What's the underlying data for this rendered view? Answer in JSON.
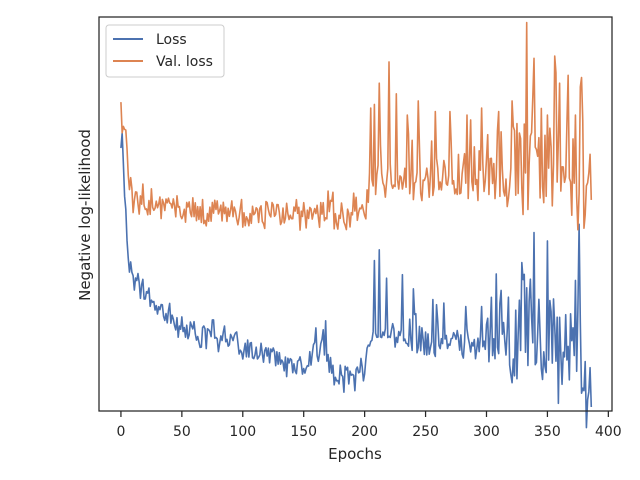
{
  "chart_data": {
    "type": "line",
    "title": "",
    "xlabel": "Epochs",
    "ylabel": "Negative log-likelihood",
    "xlim": [
      -18,
      403
    ],
    "ylim": [
      0,
      1
    ],
    "xticks": [
      0,
      50,
      100,
      150,
      200,
      250,
      300,
      350,
      400
    ],
    "yticks_labeled": false,
    "grid": false,
    "legend": {
      "position": "top-left"
    },
    "series": [
      {
        "name": "Loss",
        "color": "#4c72b0",
        "noise_amp": [
          0.05,
          0.04,
          0.05,
          0.06,
          0.05,
          0.045,
          0.045,
          0.045,
          0.06,
          0.05,
          0.04,
          0.05,
          0.06,
          0.04,
          0.05,
          0.08,
          0.17,
          0.17,
          0.17,
          0.17
        ],
        "points": [
          [
            0,
            0.72
          ],
          [
            1,
            0.71
          ],
          [
            2,
            0.62
          ],
          [
            3,
            0.55
          ],
          [
            4,
            0.51
          ],
          [
            5,
            0.4
          ],
          [
            6,
            0.38
          ],
          [
            8,
            0.36
          ],
          [
            10,
            0.34
          ],
          [
            15,
            0.3
          ],
          [
            20,
            0.28
          ],
          [
            30,
            0.24
          ],
          [
            40,
            0.22
          ],
          [
            50,
            0.19
          ],
          [
            60,
            0.18
          ],
          [
            70,
            0.17
          ],
          [
            80,
            0.16
          ],
          [
            90,
            0.15
          ],
          [
            100,
            0.14
          ],
          [
            110,
            0.13
          ],
          [
            120,
            0.12
          ],
          [
            130,
            0.1
          ],
          [
            140,
            0.09
          ],
          [
            150,
            0.08
          ],
          [
            158,
            0.11
          ],
          [
            165,
            0.14
          ],
          [
            168,
            0.16
          ],
          [
            172,
            0.08
          ],
          [
            180,
            0.05
          ],
          [
            190,
            0.05
          ],
          [
            198,
            0.06
          ],
          [
            203,
            0.12
          ],
          [
            206,
            0.16
          ],
          [
            220,
            0.16
          ],
          [
            250,
            0.15
          ],
          [
            300,
            0.14
          ],
          [
            350,
            0.13
          ],
          [
            378,
            0.12
          ],
          [
            382,
            0.06
          ],
          [
            384,
            0.04
          ],
          [
            386,
            0.05
          ]
        ],
        "spikes": [
          [
            160,
            0.19
          ],
          [
            168,
            0.21
          ],
          [
            208,
            0.38
          ],
          [
            212,
            0.41
          ],
          [
            218,
            0.33
          ],
          [
            231,
            0.34
          ],
          [
            240,
            0.3
          ],
          [
            256,
            0.27
          ],
          [
            265,
            0.26
          ],
          [
            283,
            0.25
          ],
          [
            296,
            0.25
          ],
          [
            324,
            0.24
          ],
          [
            337,
            0.22
          ],
          [
            358,
            0.22
          ],
          [
            375,
            0.24
          ]
        ]
      },
      {
        "name": "Val. loss",
        "color": "#dd8452",
        "noise_amp": [
          0.06,
          0.05,
          0.05,
          0.06,
          0.06,
          0.06,
          0.05,
          0.05,
          0.06,
          0.06,
          0.06,
          0.06,
          0.07,
          0.07,
          0.09,
          0.1,
          0.18,
          0.17,
          0.17,
          0.17
        ],
        "points": [
          [
            0,
            0.8
          ],
          [
            2,
            0.78
          ],
          [
            4,
            0.72
          ],
          [
            6,
            0.62
          ],
          [
            10,
            0.56
          ],
          [
            20,
            0.54
          ],
          [
            40,
            0.52
          ],
          [
            60,
            0.52
          ],
          [
            80,
            0.52
          ],
          [
            100,
            0.52
          ],
          [
            110,
            0.51
          ],
          [
            120,
            0.51
          ],
          [
            130,
            0.51
          ],
          [
            140,
            0.51
          ],
          [
            150,
            0.5
          ],
          [
            160,
            0.52
          ],
          [
            170,
            0.53
          ],
          [
            180,
            0.5
          ],
          [
            190,
            0.51
          ],
          [
            200,
            0.52
          ],
          [
            204,
            0.6
          ],
          [
            210,
            0.62
          ],
          [
            250,
            0.6
          ],
          [
            300,
            0.6
          ],
          [
            350,
            0.6
          ],
          [
            378,
            0.6
          ],
          [
            382,
            0.56
          ],
          [
            384,
            0.54
          ],
          [
            386,
            0.55
          ]
        ],
        "spikes": [
          [
            205,
            0.81
          ],
          [
            208,
            0.82
          ],
          [
            212,
            0.88
          ],
          [
            220,
            0.94
          ],
          [
            226,
            0.85
          ],
          [
            235,
            0.79
          ],
          [
            244,
            0.83
          ],
          [
            258,
            0.8
          ],
          [
            270,
            0.8
          ],
          [
            284,
            0.79
          ],
          [
            296,
            0.81
          ],
          [
            310,
            0.8
          ],
          [
            321,
            0.83
          ],
          [
            338,
            0.84
          ],
          [
            350,
            0.79
          ],
          [
            360,
            0.88
          ],
          [
            373,
            0.79
          ]
        ]
      }
    ]
  }
}
